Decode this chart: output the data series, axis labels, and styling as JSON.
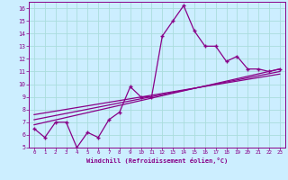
{
  "title": "",
  "xlabel": "Windchill (Refroidissement éolien,°C)",
  "bg_color": "#cceeff",
  "line_color": "#880088",
  "grid_color": "#aadddd",
  "axis_color": "#880088",
  "spine_color": "#880088",
  "xlim": [
    -0.5,
    23.5
  ],
  "ylim": [
    5,
    16.5
  ],
  "xticks": [
    0,
    1,
    2,
    3,
    4,
    5,
    6,
    7,
    8,
    9,
    10,
    11,
    12,
    13,
    14,
    15,
    16,
    17,
    18,
    19,
    20,
    21,
    22,
    23
  ],
  "yticks": [
    5,
    6,
    7,
    8,
    9,
    10,
    11,
    12,
    13,
    14,
    15,
    16
  ],
  "main_x": [
    0,
    1,
    2,
    3,
    4,
    5,
    6,
    7,
    8,
    9,
    10,
    11,
    12,
    13,
    14,
    15,
    16,
    17,
    18,
    19,
    20,
    21,
    22,
    23
  ],
  "main_y": [
    6.5,
    5.8,
    7.0,
    7.0,
    5.0,
    6.2,
    5.8,
    7.2,
    7.8,
    9.8,
    9.0,
    9.0,
    13.8,
    15.0,
    16.2,
    14.2,
    13.0,
    13.0,
    11.8,
    12.2,
    11.2,
    11.2,
    11.0,
    11.2
  ],
  "line1_x": [
    0,
    23
  ],
  "line1_y": [
    6.8,
    11.2
  ],
  "line2_x": [
    0,
    23
  ],
  "line2_y": [
    7.2,
    11.0
  ],
  "line3_x": [
    0,
    23
  ],
  "line3_y": [
    7.6,
    10.8
  ]
}
